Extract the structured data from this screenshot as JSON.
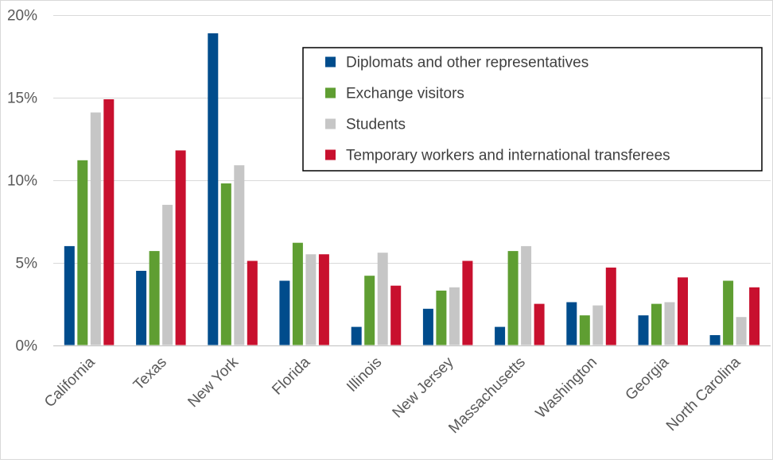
{
  "chart_data": {
    "type": "bar",
    "title": "",
    "xlabel": "",
    "ylabel": "",
    "ylim": [
      0,
      20
    ],
    "yticks": [
      0,
      5,
      10,
      15,
      20
    ],
    "ytick_labels": [
      "0%",
      "5%",
      "10%",
      "15%",
      "20%"
    ],
    "grid": true,
    "legend_position": "top-right",
    "categories": [
      "California",
      "Texas",
      "New York",
      "Florida",
      "Illinois",
      "New Jersey",
      "Massachusetts",
      "Washington",
      "Georgia",
      "North Carolina"
    ],
    "series": [
      {
        "name": "Diplomats and other representatives",
        "color": "#004c8c",
        "values": [
          6.0,
          4.5,
          18.9,
          3.9,
          1.1,
          2.2,
          1.1,
          2.6,
          1.8,
          0.6
        ]
      },
      {
        "name": "Exchange visitors",
        "color": "#5f9e32",
        "values": [
          11.2,
          5.7,
          9.8,
          6.2,
          4.2,
          3.3,
          5.7,
          1.8,
          2.5,
          3.9
        ]
      },
      {
        "name": "Students",
        "color": "#c6c6c6",
        "values": [
          14.1,
          8.5,
          10.9,
          5.5,
          5.6,
          3.5,
          6.0,
          2.4,
          2.6,
          1.7
        ]
      },
      {
        "name": "Temporary workers and international transferees",
        "color": "#c8102e",
        "values": [
          14.9,
          11.8,
          5.1,
          5.5,
          3.6,
          5.1,
          2.5,
          4.7,
          4.1,
          3.5
        ]
      }
    ]
  }
}
